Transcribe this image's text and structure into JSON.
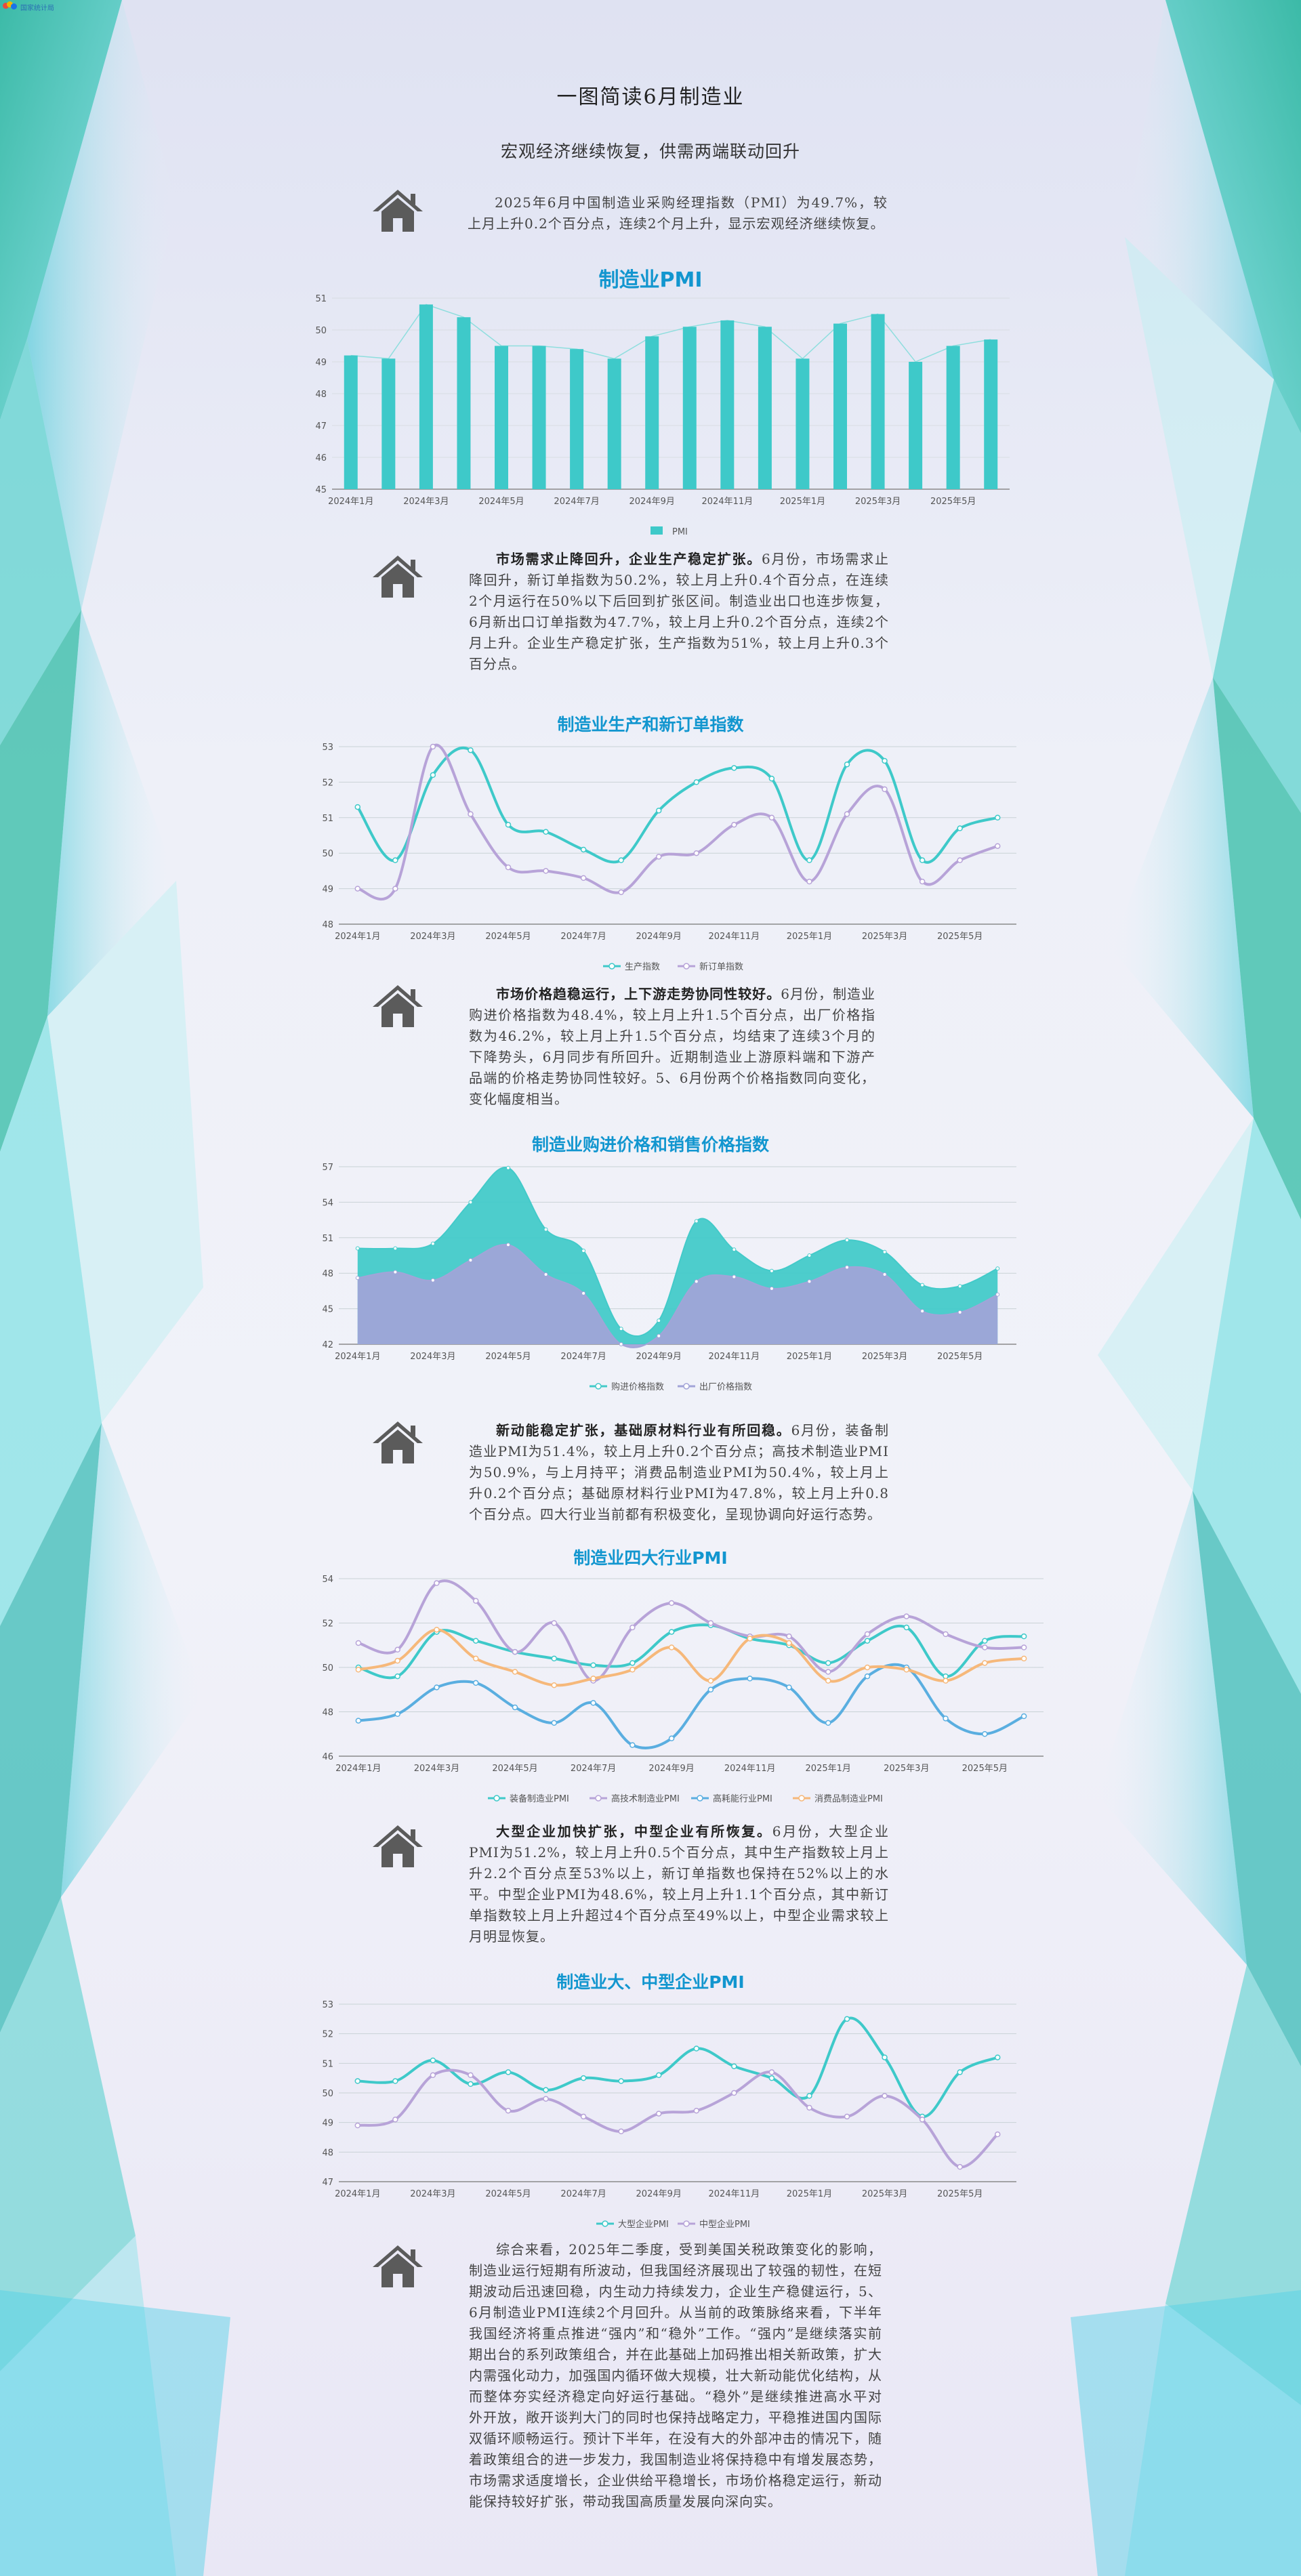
{
  "logo": {
    "text": "国家统计局"
  },
  "header": {
    "title": "一图简读6月制造业",
    "subtitle": "宏观经济继续恢复，供需两端联动回升"
  },
  "icons": {
    "section_icon": "home-icon"
  },
  "sections": [
    {
      "lead": "",
      "text": "2025年6月中国制造业采购经理指数（PMI）为49.7%，较上月上升0.2个百分点，连续2个月上升，显示宏观经济继续恢复。"
    },
    {
      "lead": "市场需求止降回升，企业生产稳定扩张。",
      "text": "6月份，市场需求止降回升，新订单指数为50.2%，较上月上升0.4个百分点，在连续2个月运行在50%以下后回到扩张区间。制造业出口也连步恢复，6月新出口订单指数为47.7%，较上月上升0.2个百分点，连续2个月上升。企业生产稳定扩张，生产指数为51%，较上月上升0.3个百分点。"
    },
    {
      "lead": "市场价格趋稳运行，上下游走势协同性较好。",
      "text": "6月份，制造业购进价格指数为48.4%，较上月上升1.5个百分点，出厂价格指数为46.2%，较上月上升1.5个百分点，均结束了连续3个月的下降势头，6月同步有所回升。近期制造业上游原料端和下游产品端的价格走势协同性较好。5、6月份两个价格指数同向变化，变化幅度相当。"
    },
    {
      "lead": "新动能稳定扩张，基础原材料行业有所回稳。",
      "text": "6月份，装备制造业PMI为51.4%，较上月上升0.2个百分点；高技术制造业PMI为50.9%，与上月持平；消费品制造业PMI为50.4%，较上月上升0.2个百分点；基础原材料行业PMI为47.8%，较上月上升0.8个百分点。四大行业当前都有积极变化，呈现协调向好运行态势。"
    },
    {
      "lead": "大型企业加快扩张，中型企业有所恢复。",
      "text": "6月份，大型企业PMI为51.2%，较上月上升0.5个百分点，其中生产指数较上月上升2.2个百分点至53%以上，新订单指数也保持在52%以上的水平。中型企业PMI为48.6%，较上月上升1.1个百分点，其中新订单指数较上月上升超过4个百分点至49%以上，中型企业需求较上月明显恢复。"
    },
    {
      "lead": "",
      "text": "综合来看，2025年二季度，受到美国关税政策变化的影响，制造业运行短期有所波动，但我国经济展现出了较强的韧性，在短期波动后迅速回稳，内生动力持续发力，企业生产稳健运行，5、6月制造业PMI连续2个月回升。从当前的政策脉络来看，下半年我国经济将重点推进“强内”和“稳外”工作。“强内”是继续落实前期出台的系列政策组合，并在此基础上加码推出相关新政策，扩大内需强化动力，加强国内循环做大规模，壮大新动能优化结构，从而整体夯实经济稳定向好运行基础。“稳外”是继续推进高水平对外开放，敞开谈判大门的同时也保持战略定力，平稳推进国内国际双循环顺畅运行。预计下半年，在没有大的外部冲击的情况下，随着政策组合的进一步发力，我国制造业将保持稳中有增发展态势，市场需求适度增长，企业供给平稳增长，市场价格稳定运行，新动能保持较好扩张，带动我国高质量发展向深向实。"
    }
  ],
  "chart_data": [
    {
      "type": "bar",
      "title": "制造业PMI",
      "categories": [
        "2024年1月",
        "2024年2月",
        "2024年3月",
        "2024年4月",
        "2024年5月",
        "2024年6月",
        "2024年7月",
        "2024年8月",
        "2024年9月",
        "2024年10月",
        "2024年11月",
        "2024年12月",
        "2025年1月",
        "2025年2月",
        "2025年3月",
        "2025年4月",
        "2025年5月",
        "2025年6月"
      ],
      "x_tick_labels": [
        "2024年1月",
        "2024年3月",
        "2024年5月",
        "2024年7月",
        "2024年9月",
        "2024年11月",
        "2025年1月",
        "2025年3月",
        "2025年5月"
      ],
      "series": [
        {
          "name": "PMI",
          "values": [
            49.2,
            49.1,
            50.8,
            50.4,
            49.5,
            49.5,
            49.4,
            49.1,
            49.8,
            50.1,
            50.3,
            50.1,
            49.1,
            50.2,
            50.5,
            49.0,
            49.5,
            49.7
          ]
        }
      ],
      "ylim": [
        45,
        51
      ],
      "yticks": [
        45,
        46,
        47,
        48,
        49,
        50,
        51
      ],
      "legend": "bottom-center",
      "colors": {
        "bar": "#3ec9c9"
      }
    },
    {
      "type": "line",
      "title": "制造业生产和新订单指数",
      "categories": [
        "2024年1月",
        "2024年2月",
        "2024年3月",
        "2024年4月",
        "2024年5月",
        "2024年6月",
        "2024年7月",
        "2024年8月",
        "2024年9月",
        "2024年10月",
        "2024年11月",
        "2024年12月",
        "2025年1月",
        "2025年2月",
        "2025年3月",
        "2025年4月",
        "2025年5月",
        "2025年6月"
      ],
      "x_tick_labels": [
        "2024年1月",
        "2024年3月",
        "2024年5月",
        "2024年7月",
        "2024年9月",
        "2024年11月",
        "2025年1月",
        "2025年3月",
        "2025年5月"
      ],
      "series": [
        {
          "name": "生产指数",
          "values": [
            51.3,
            49.8,
            52.2,
            52.9,
            50.8,
            50.6,
            50.1,
            49.8,
            51.2,
            52.0,
            52.4,
            52.1,
            49.8,
            52.5,
            52.6,
            49.8,
            50.7,
            51.0
          ]
        },
        {
          "name": "新订单指数",
          "values": [
            49.0,
            49.0,
            53.0,
            51.1,
            49.6,
            49.5,
            49.3,
            48.9,
            49.9,
            50.0,
            50.8,
            51.0,
            49.2,
            51.1,
            51.8,
            49.2,
            49.8,
            50.2
          ]
        }
      ],
      "ylim": [
        48,
        53
      ],
      "yticks": [
        48,
        49,
        50,
        51,
        52,
        53
      ],
      "legend": "bottom-center",
      "colors": {
        "生产指数": "#3ec9c9",
        "新订单指数": "#b7a3d8"
      }
    },
    {
      "type": "area",
      "title": "制造业购进价格和销售价格指数",
      "categories": [
        "2024年1月",
        "2024年2月",
        "2024年3月",
        "2024年4月",
        "2024年5月",
        "2024年6月",
        "2024年7月",
        "2024年8月",
        "2024年9月",
        "2024年10月",
        "2024年11月",
        "2024年12月",
        "2025年1月",
        "2025年2月",
        "2025年3月",
        "2025年4月",
        "2025年5月",
        "2025年6月"
      ],
      "x_tick_labels": [
        "2024年1月",
        "2024年3月",
        "2024年5月",
        "2024年7月",
        "2024年9月",
        "2024年11月",
        "2025年1月",
        "2025年3月",
        "2025年5月"
      ],
      "series": [
        {
          "name": "购进价格指数",
          "values": [
            50.1,
            50.1,
            50.5,
            54.0,
            56.9,
            51.7,
            49.9,
            43.3,
            44.0,
            52.4,
            50.0,
            48.2,
            49.5,
            50.8,
            49.8,
            47.0,
            46.9,
            48.4
          ]
        },
        {
          "name": "出厂价格指数",
          "values": [
            47.6,
            48.1,
            47.4,
            49.1,
            50.4,
            47.9,
            46.3,
            42.0,
            42.7,
            47.3,
            47.7,
            46.7,
            47.3,
            48.5,
            47.9,
            44.8,
            44.7,
            46.2
          ]
        }
      ],
      "ylim": [
        42,
        57
      ],
      "yticks": [
        42,
        45,
        48,
        51,
        54,
        57
      ],
      "legend": "bottom-center",
      "colors": {
        "购进价格指数": "#43cac9",
        "出厂价格指数": "#a2a4d8"
      }
    },
    {
      "type": "line",
      "title": "制造业四大行业PMI",
      "categories": [
        "2024年1月",
        "2024年2月",
        "2024年3月",
        "2024年4月",
        "2024年5月",
        "2024年6月",
        "2024年7月",
        "2024年8月",
        "2024年9月",
        "2024年10月",
        "2024年11月",
        "2024年12月",
        "2025年1月",
        "2025年2月",
        "2025年3月",
        "2025年4月",
        "2025年5月",
        "2025年6月"
      ],
      "x_tick_labels": [
        "2024年1月",
        "2024年3月",
        "2024年5月",
        "2024年7月",
        "2024年9月",
        "2024年11月",
        "2025年1月",
        "2025年3月",
        "2025年5月"
      ],
      "series": [
        {
          "name": "装备制造业PMI",
          "values": [
            50.0,
            49.6,
            51.6,
            51.2,
            50.7,
            50.4,
            50.1,
            50.2,
            51.6,
            51.9,
            51.3,
            51.0,
            50.2,
            51.2,
            51.8,
            49.6,
            51.2,
            51.4
          ]
        },
        {
          "name": "高技术制造业PMI",
          "values": [
            51.1,
            50.8,
            53.8,
            53.0,
            50.7,
            52.0,
            49.4,
            51.8,
            52.9,
            52.0,
            51.4,
            51.4,
            49.8,
            51.5,
            52.3,
            51.5,
            50.9,
            50.9
          ]
        },
        {
          "name": "高耗能行业PMI",
          "values": [
            47.6,
            47.9,
            49.1,
            49.3,
            48.2,
            47.5,
            48.4,
            46.5,
            46.8,
            49.0,
            49.5,
            49.1,
            47.5,
            49.6,
            50.0,
            47.7,
            47.0,
            47.8
          ]
        },
        {
          "name": "消费品制造业PMI",
          "values": [
            49.9,
            50.3,
            51.7,
            50.4,
            49.8,
            49.2,
            49.5,
            49.9,
            50.9,
            49.4,
            51.3,
            51.1,
            49.4,
            50.0,
            49.9,
            49.4,
            50.2,
            50.4
          ]
        }
      ],
      "ylim": [
        46,
        54
      ],
      "yticks": [
        46,
        48,
        50,
        52,
        54
      ],
      "legend": "bottom-center",
      "colors": {
        "装备制造业PMI": "#3ec9c9",
        "高技术制造业PMI": "#b7a3d8",
        "高耗能行业PMI": "#5aaee0",
        "消费品制造业PMI": "#f6b87a"
      }
    },
    {
      "type": "line",
      "title": "制造业大、中型企业PMI",
      "categories": [
        "2024年1月",
        "2024年2月",
        "2024年3月",
        "2024年4月",
        "2024年5月",
        "2024年6月",
        "2024年7月",
        "2024年8月",
        "2024年9月",
        "2024年10月",
        "2024年11月",
        "2024年12月",
        "2025年1月",
        "2025年2月",
        "2025年3月",
        "2025年4月",
        "2025年5月",
        "2025年6月"
      ],
      "x_tick_labels": [
        "2024年1月",
        "2024年3月",
        "2024年5月",
        "2024年7月",
        "2024年9月",
        "2024年11月",
        "2025年1月",
        "2025年3月",
        "2025年5月"
      ],
      "series": [
        {
          "name": "大型企业PMI",
          "values": [
            50.4,
            50.4,
            51.1,
            50.3,
            50.7,
            50.1,
            50.5,
            50.4,
            50.6,
            51.5,
            50.9,
            50.5,
            49.9,
            52.5,
            51.2,
            49.2,
            50.7,
            51.2
          ]
        },
        {
          "name": "中型企业PMI",
          "values": [
            48.9,
            49.1,
            50.6,
            50.6,
            49.4,
            49.8,
            49.2,
            48.7,
            49.3,
            49.4,
            50.0,
            50.7,
            49.5,
            49.2,
            49.9,
            49.1,
            47.5,
            48.6
          ]
        }
      ],
      "ylim": [
        47,
        53
      ],
      "yticks": [
        47,
        48,
        49,
        50,
        51,
        52,
        53
      ],
      "legend": "bottom-center",
      "colors": {
        "大型企业PMI": "#3ec9c9",
        "中型企业PMI": "#b7a3d8"
      }
    }
  ]
}
